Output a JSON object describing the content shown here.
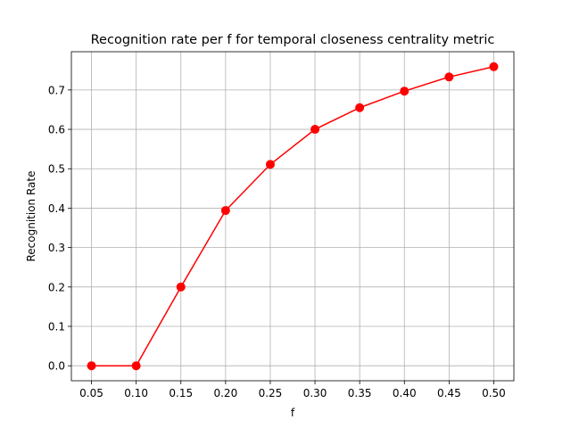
{
  "chart_data": {
    "type": "line",
    "title": "Recognition rate per f for temporal closeness centrality metric",
    "xlabel": "f",
    "ylabel": "Recognition Rate",
    "x": [
      0.05,
      0.1,
      0.15,
      0.2,
      0.25,
      0.3,
      0.35,
      0.4,
      0.45,
      0.5
    ],
    "series": [
      {
        "values": [
          0.0,
          0.0,
          0.2,
          0.394,
          0.511,
          0.6,
          0.655,
          0.697,
          0.733,
          0.759
        ],
        "color": "#ff0000"
      }
    ],
    "xticks": [
      "0.05",
      "0.10",
      "0.15",
      "0.20",
      "0.25",
      "0.30",
      "0.35",
      "0.40",
      "0.45",
      "0.50"
    ],
    "yticks": [
      "0.0",
      "0.1",
      "0.2",
      "0.3",
      "0.4",
      "0.5",
      "0.6",
      "0.7"
    ],
    "xlim": [
      0.0275,
      0.5225
    ],
    "ylim": [
      -0.038,
      0.797
    ],
    "grid": true,
    "marker": "circle"
  }
}
